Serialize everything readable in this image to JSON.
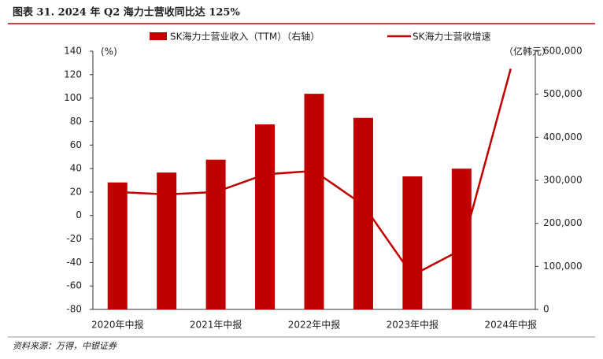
{
  "chart_data": {
    "type": "bar_line",
    "title": "图表 31. 2024 年 Q2 海力士营收同比达 125%",
    "source": "资料来源：万得，中银证券",
    "y_unit": "(%)",
    "y2_unit": "（亿韩元）",
    "categories": [
      "2020年中报",
      null,
      "2021年中报",
      null,
      "2022年中报",
      null,
      "2023年中报",
      null,
      "2024年中报"
    ],
    "series": [
      {
        "name": "SK海力士营业收入（TTM）（右轴）",
        "color": "#c00000",
        "type": "bar",
        "axis": "y2",
        "values": [
          295000,
          318000,
          348000,
          430000,
          501000,
          445000,
          309000,
          327000,
          null
        ]
      },
      {
        "name": "SK海力士营收增速",
        "color": "#c00000",
        "type": "line",
        "axis": "y",
        "values": [
          20,
          18,
          20,
          35,
          38,
          9,
          -51,
          -29,
          125
        ]
      }
    ],
    "ylim": [
      -80,
      140
    ],
    "yticks": [
      -80,
      -60,
      -40,
      -20,
      0,
      20,
      40,
      60,
      80,
      100,
      120,
      140
    ],
    "y2lim": [
      0,
      600000
    ],
    "y2ticks": [
      0,
      {
        "value": 100000,
        "label": "100,000"
      },
      {
        "value": 200000,
        "label": "200,000"
      },
      {
        "value": 300000,
        "label": "300,000"
      },
      {
        "value": 400000,
        "label": "400,000"
      },
      {
        "value": 500000,
        "label": "500,000"
      },
      {
        "value": 600000,
        "label": "600,000"
      }
    ]
  }
}
